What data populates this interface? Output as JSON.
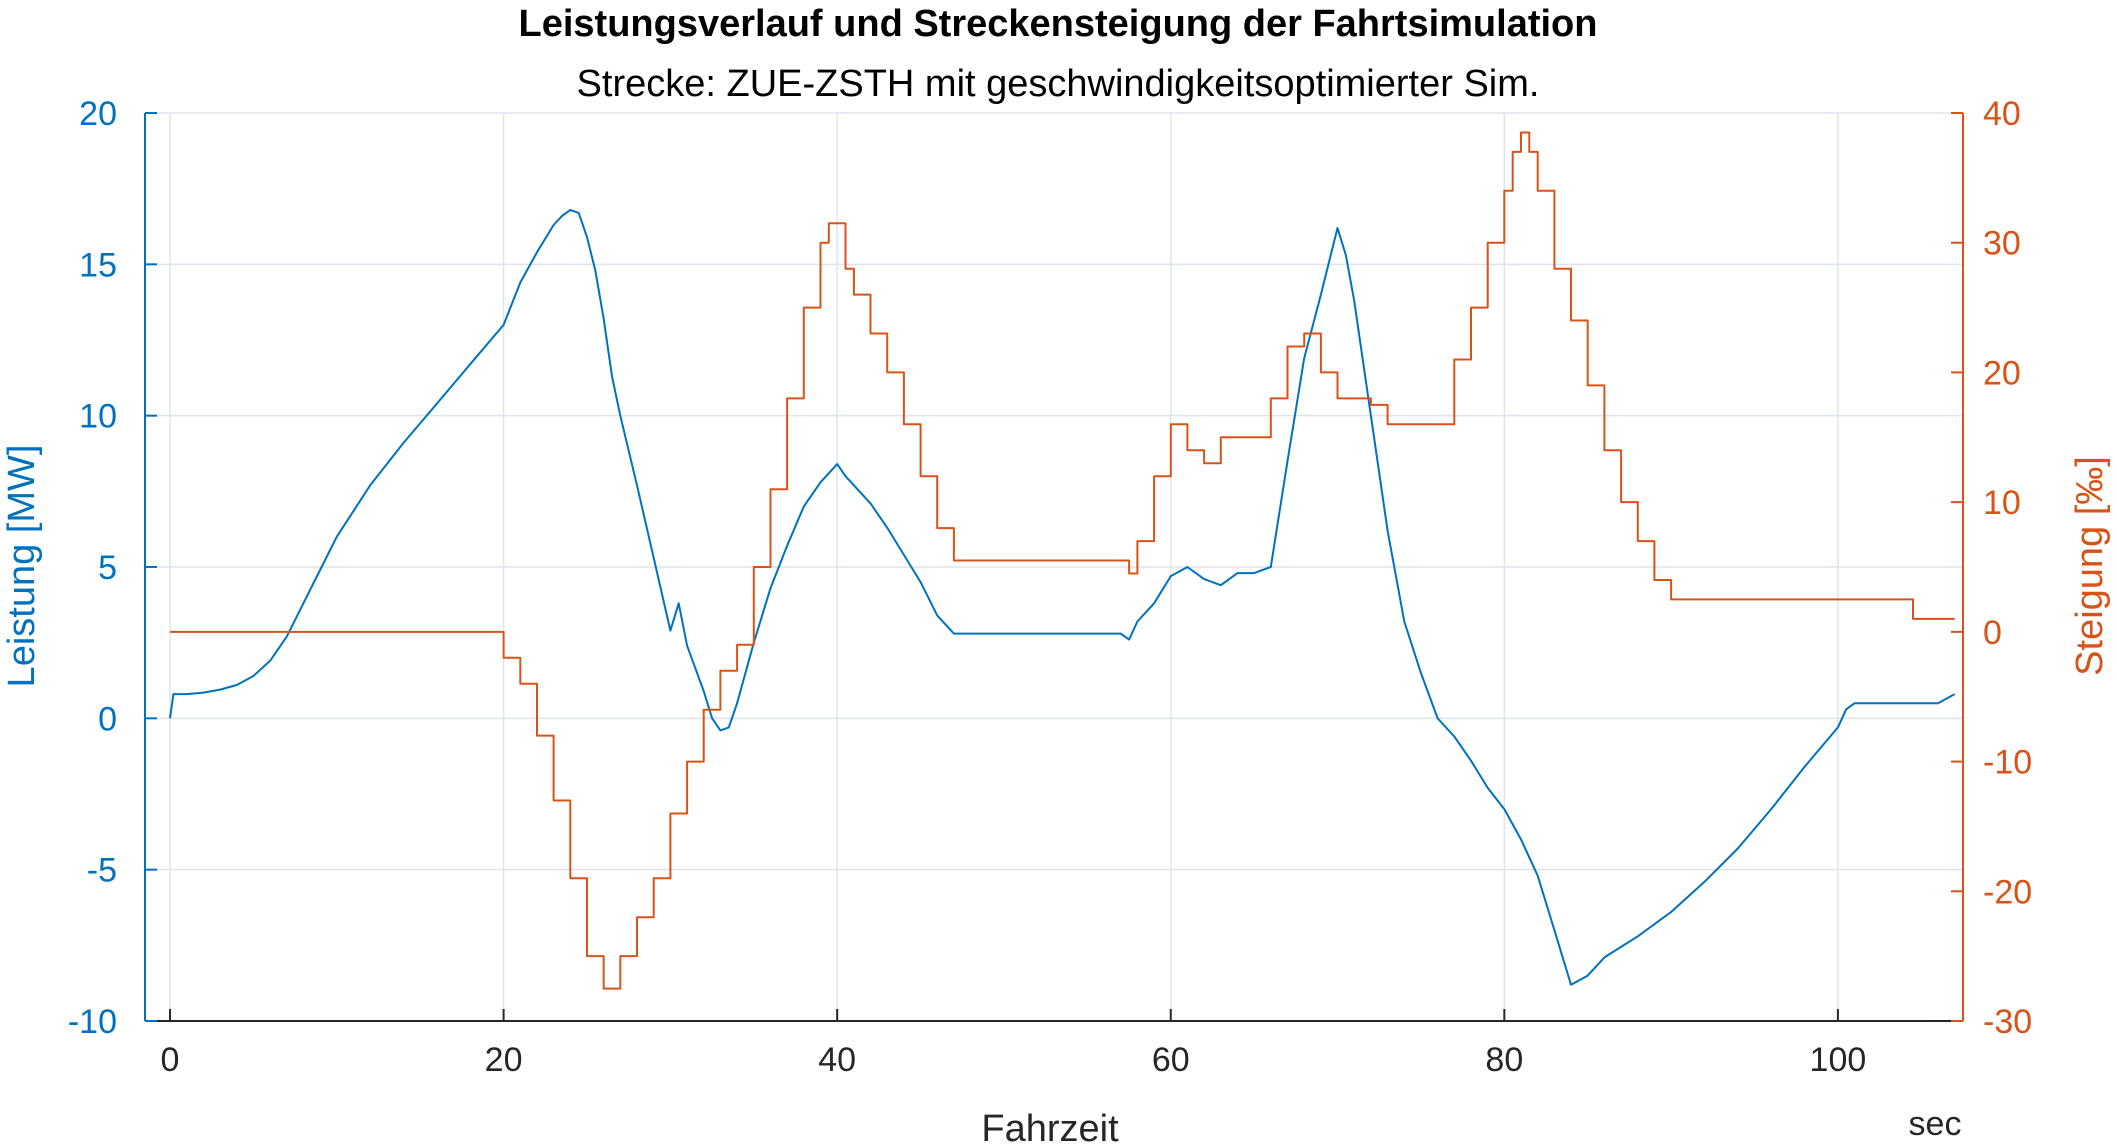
{
  "colors": {
    "left_axis": "#0072BD",
    "right_axis": "#D95319",
    "grid": "#DFE4EC",
    "frame": "#262626"
  },
  "chart_data": {
    "type": "line",
    "title": "Leistungsverlauf und Streckensteigung der Fahrtsimulation",
    "subtitle": "Strecke: ZUE-ZSTH mit geschwindigkeitsoptimierter Sim.",
    "xlabel": "Fahrzeit",
    "x_unit": "sec",
    "ylabel_left": "Leistung [MW]",
    "ylabel_right": "Steigung [‰]",
    "xlim": [
      -1.5,
      107.5
    ],
    "ylim_left": [
      -10,
      20
    ],
    "ylim_right": [
      -30,
      40
    ],
    "x_ticks": [
      "0",
      "20",
      "40",
      "60",
      "80",
      "100"
    ],
    "x_tick_values": [
      0,
      20,
      40,
      60,
      80,
      100
    ],
    "y_left_ticks": [
      "-10",
      "-5",
      "0",
      "5",
      "10",
      "15",
      "20"
    ],
    "y_left_tick_values": [
      -10,
      -5,
      0,
      5,
      10,
      15,
      20
    ],
    "y_right_ticks": [
      "-30",
      "-20",
      "-10",
      "0",
      "10",
      "20",
      "30",
      "40"
    ],
    "y_right_tick_values": [
      -30,
      -20,
      -10,
      0,
      10,
      20,
      30,
      40
    ],
    "grid": true,
    "series": [
      {
        "axis": "left",
        "color": "#0072BD",
        "x": [
          0,
          0.2,
          1,
          2,
          3,
          4,
          5,
          6,
          7,
          8,
          9,
          10,
          12,
          14,
          16,
          18,
          20,
          21,
          22,
          23,
          23.5,
          24,
          24.5,
          25,
          25.5,
          26,
          26.5,
          27,
          28,
          29,
          30,
          30.5,
          31,
          32,
          32.5,
          33,
          33.5,
          34,
          35,
          36,
          37,
          38,
          39,
          40,
          40.5,
          41,
          42,
          43,
          44,
          45,
          46,
          47,
          50,
          53,
          56,
          57,
          57.5,
          58,
          59,
          60,
          61,
          62,
          63,
          64,
          65,
          66,
          67,
          68,
          69,
          70,
          70.5,
          71,
          72,
          73,
          74,
          75,
          76,
          77,
          78,
          79,
          80,
          81,
          82,
          83,
          84,
          85,
          86,
          88,
          90,
          92,
          94,
          96,
          98,
          100,
          100.5,
          101,
          103,
          105,
          106,
          107
        ],
        "values": [
          0,
          0.8,
          0.8,
          0.85,
          0.95,
          1.1,
          1.4,
          1.9,
          2.7,
          3.8,
          4.9,
          6.0,
          7.7,
          9.1,
          10.4,
          11.7,
          13.0,
          14.4,
          15.4,
          16.3,
          16.6,
          16.8,
          16.7,
          15.9,
          14.8,
          13.2,
          11.3,
          10.0,
          7.7,
          5.3,
          2.9,
          3.8,
          2.4,
          0.9,
          0,
          -0.4,
          -0.3,
          0.5,
          2.5,
          4.3,
          5.7,
          7.0,
          7.8,
          8.4,
          8.0,
          7.7,
          7.1,
          6.3,
          5.4,
          4.5,
          3.4,
          2.8,
          2.8,
          2.8,
          2.8,
          2.8,
          2.6,
          3.2,
          3.8,
          4.7,
          5.0,
          4.6,
          4.4,
          4.8,
          4.8,
          5.0,
          8.5,
          11.9,
          14.0,
          16.2,
          15.3,
          13.8,
          10.0,
          6.2,
          3.2,
          1.5,
          0,
          -0.6,
          -1.4,
          -2.3,
          -3.0,
          -4.0,
          -5.2,
          -7.0,
          -8.8,
          -8.5,
          -7.9,
          -7.2,
          -6.4,
          -5.4,
          -4.3,
          -3.0,
          -1.6,
          -0.3,
          0.3,
          0.5,
          0.5,
          0.5,
          0.5,
          0.8
        ]
      },
      {
        "axis": "right",
        "color": "#D95319",
        "x": [
          0,
          19.5,
          20,
          21,
          22,
          23,
          24,
          25,
          26,
          27,
          28,
          29,
          30,
          31,
          32,
          33,
          34,
          35,
          36,
          37,
          38,
          39,
          39.5,
          40,
          40.5,
          41,
          42,
          43,
          44,
          45,
          46,
          47,
          52,
          57,
          57.5,
          58,
          59,
          60,
          61,
          62,
          63,
          64,
          65,
          66,
          67,
          68,
          69,
          70,
          71,
          72,
          73,
          74,
          76,
          77,
          78,
          79,
          80,
          80.5,
          81,
          81.5,
          82,
          83,
          84,
          85,
          86,
          87,
          88,
          89,
          90,
          91,
          92,
          93,
          94,
          99,
          104,
          104.5,
          107
        ],
        "values": [
          0,
          0,
          -2,
          -4,
          -8,
          -13,
          -19,
          -25,
          -27.5,
          -25,
          -22,
          -19,
          -14,
          -10,
          -6,
          -3,
          -1,
          5,
          11,
          18,
          25,
          30,
          31.5,
          31.5,
          28,
          26,
          23,
          20,
          16,
          12,
          8,
          5.5,
          5.5,
          5.5,
          4.5,
          7,
          12,
          16,
          14,
          13,
          15,
          15,
          15,
          18,
          22,
          23,
          20,
          18,
          18,
          17.5,
          16,
          16,
          16,
          21,
          25,
          30,
          34,
          37,
          38.5,
          37,
          34,
          28,
          24,
          19,
          14,
          10,
          7,
          4,
          2.5,
          2.5,
          2.5,
          2.5,
          2.5,
          2.5,
          2.5,
          1,
          1
        ]
      }
    ]
  }
}
